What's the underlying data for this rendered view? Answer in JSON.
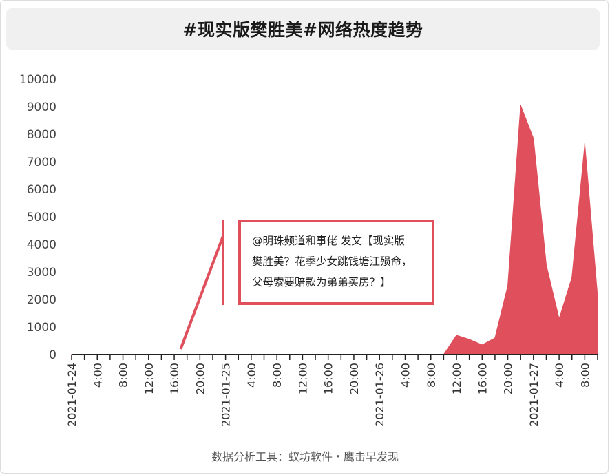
{
  "title": "#现实版樊胜美#网络热度趋势",
  "chart_data": {
    "type": "area",
    "title": "#现实版樊胜美#网络热度趋势",
    "xlabel": "",
    "ylabel": "",
    "ylim": [
      0,
      10000
    ],
    "yticks": [
      0,
      1000,
      2000,
      3000,
      4000,
      5000,
      6000,
      7000,
      8000,
      9000,
      10000
    ],
    "x_unit": "hours since 2021-01-24 00:00",
    "xlim": [
      0,
      82
    ],
    "xticks": [
      {
        "h": 0,
        "label": "2021-01-24"
      },
      {
        "h": 4,
        "label": "4:00"
      },
      {
        "h": 8,
        "label": "8:00"
      },
      {
        "h": 12,
        "label": "12:00"
      },
      {
        "h": 16,
        "label": "16:00"
      },
      {
        "h": 20,
        "label": "20:00"
      },
      {
        "h": 24,
        "label": "2021-01-25"
      },
      {
        "h": 28,
        "label": "4:00"
      },
      {
        "h": 32,
        "label": "8:00"
      },
      {
        "h": 36,
        "label": "12:00"
      },
      {
        "h": 40,
        "label": "16:00"
      },
      {
        "h": 44,
        "label": "20:00"
      },
      {
        "h": 48,
        "label": "2021-01-26"
      },
      {
        "h": 52,
        "label": "4:00"
      },
      {
        "h": 56,
        "label": "8:00"
      },
      {
        "h": 60,
        "label": "12:00"
      },
      {
        "h": 64,
        "label": "16:00"
      },
      {
        "h": 68,
        "label": "20:00"
      },
      {
        "h": 72,
        "label": "2021-01-27"
      },
      {
        "h": 76,
        "label": "4:00"
      },
      {
        "h": 80,
        "label": "8:00"
      }
    ],
    "series": [
      {
        "color": "#df4f5c",
        "points": [
          [
            0,
            0
          ],
          [
            58,
            0
          ],
          [
            60,
            700
          ],
          [
            62,
            550
          ],
          [
            64,
            350
          ],
          [
            66,
            600
          ],
          [
            68,
            2500
          ],
          [
            70,
            9050
          ],
          [
            72,
            7850
          ],
          [
            74,
            3250
          ],
          [
            76,
            1300
          ],
          [
            78,
            2800
          ],
          [
            80,
            7650
          ],
          [
            82,
            2100
          ]
        ]
      }
    ],
    "annotation": {
      "text_lines": [
        "@明珠频道和事佬  发文【现实版",
        "樊胜美？花季少女跳钱塘江殒命，",
        "父母索要赔款为弟弟买房？】"
      ],
      "anchor_h": 17
    }
  },
  "footer": "数据分析工具：蚁坊软件・鹰击早发现"
}
